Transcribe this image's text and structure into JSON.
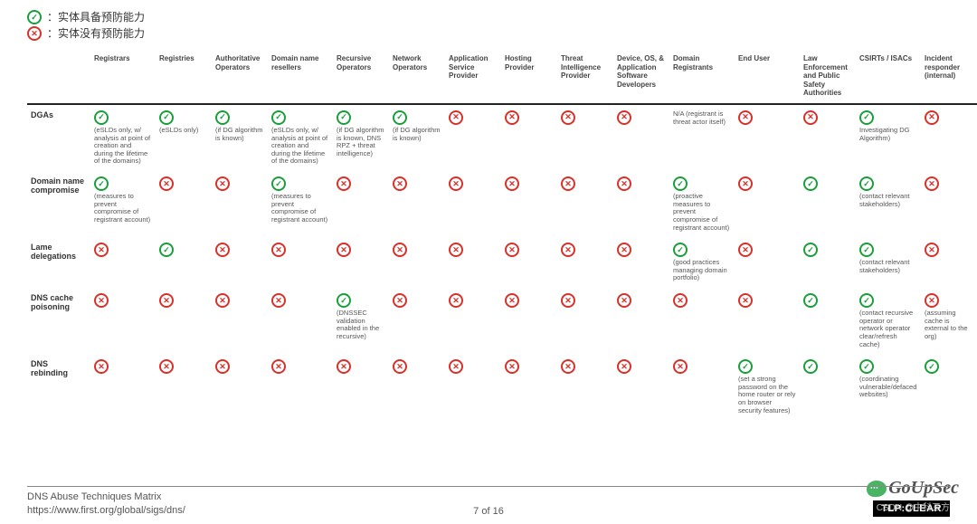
{
  "legend": {
    "yes": "：实体具备预防能力",
    "no": "：实体没有预防能力"
  },
  "columns": [
    "Registrars",
    "Registries",
    "Authoritative Operators",
    "Domain name resellers",
    "Recursive Operators",
    "Network Operators",
    "Application Service Provider",
    "Hosting Provider",
    "Threat Intelligence Provider",
    "Device, OS, & Application Software Developers",
    "Domain Registrants",
    "End User",
    "Law Enforcement and Public Safety Authorities",
    "CSIRTs / ISACs",
    "Incident responder (internal)"
  ],
  "rows": [
    {
      "label": "DGAs",
      "cells": [
        {
          "v": "y",
          "n": "(eSLDs only, w/ analysis at point of creation and during the lifetime of the domains)"
        },
        {
          "v": "y",
          "n": "(eSLDs only)"
        },
        {
          "v": "y",
          "n": "(if DG algorithm is known)"
        },
        {
          "v": "y",
          "n": "(eSLDs only, w/ analysis at point of creation and during the lifetime of the domains)"
        },
        {
          "v": "y",
          "n": "(if DG algorithm is known, DNS RPZ + threat intelligence)"
        },
        {
          "v": "y",
          "n": "(if DG algorithm is known)"
        },
        {
          "v": "n"
        },
        {
          "v": "n"
        },
        {
          "v": "n"
        },
        {
          "v": "n"
        },
        {
          "v": "",
          "n": "N/A (registrant is threat actor itself)"
        },
        {
          "v": "n"
        },
        {
          "v": "n"
        },
        {
          "v": "y",
          "n": "Investigating DG Algorithm)"
        },
        {
          "v": "n"
        }
      ]
    },
    {
      "label": "Domain name compromise",
      "cells": [
        {
          "v": "y",
          "n": "(measures to prevent compromise of registrant account)"
        },
        {
          "v": "n"
        },
        {
          "v": "n"
        },
        {
          "v": "y",
          "n": "(measures to prevent compromise of registrant account)"
        },
        {
          "v": "n"
        },
        {
          "v": "n"
        },
        {
          "v": "n"
        },
        {
          "v": "n"
        },
        {
          "v": "n"
        },
        {
          "v": "n"
        },
        {
          "v": "y",
          "n": "(proactive measures to prevent compromise of registrant account)"
        },
        {
          "v": "n"
        },
        {
          "v": "y"
        },
        {
          "v": "y",
          "n": "(contact relevant stakeholders)"
        },
        {
          "v": "n"
        }
      ]
    },
    {
      "label": "Lame delegations",
      "cells": [
        {
          "v": "n"
        },
        {
          "v": "y"
        },
        {
          "v": "n"
        },
        {
          "v": "n"
        },
        {
          "v": "n"
        },
        {
          "v": "n"
        },
        {
          "v": "n"
        },
        {
          "v": "n"
        },
        {
          "v": "n"
        },
        {
          "v": "n"
        },
        {
          "v": "y",
          "n": "(good practices managing domain portfolio)"
        },
        {
          "v": "n"
        },
        {
          "v": "y"
        },
        {
          "v": "y",
          "n": "(contact relevant stakeholders)"
        },
        {
          "v": "n"
        }
      ]
    },
    {
      "label": "DNS cache poisoning",
      "cells": [
        {
          "v": "n"
        },
        {
          "v": "n"
        },
        {
          "v": "n"
        },
        {
          "v": "n"
        },
        {
          "v": "y",
          "n": "(DNSSEC validation enabled in the recursive)"
        },
        {
          "v": "n"
        },
        {
          "v": "n"
        },
        {
          "v": "n"
        },
        {
          "v": "n"
        },
        {
          "v": "n"
        },
        {
          "v": "n"
        },
        {
          "v": "n"
        },
        {
          "v": "y"
        },
        {
          "v": "y",
          "n": "(contact recursive operator or network operator clear/refresh cache)"
        },
        {
          "v": "n",
          "n": "(assuming cache is external to the org)"
        }
      ]
    },
    {
      "label": "DNS rebinding",
      "cells": [
        {
          "v": "n"
        },
        {
          "v": "n"
        },
        {
          "v": "n"
        },
        {
          "v": "n"
        },
        {
          "v": "n"
        },
        {
          "v": "n"
        },
        {
          "v": "n"
        },
        {
          "v": "n"
        },
        {
          "v": "n"
        },
        {
          "v": "n"
        },
        {
          "v": "n"
        },
        {
          "v": "y",
          "n": "(set a strong password on the home router or rely on browser security features)"
        },
        {
          "v": "y"
        },
        {
          "v": "y",
          "n": "(coordinating vulnerable/defaced websites)"
        },
        {
          "v": "y"
        }
      ]
    }
  ],
  "footer": {
    "title": "DNS Abuse Techniques Matrix",
    "url": "https://www.first.org/global/sigs/dns/",
    "page": "7 of 16",
    "tlp": "TLP:CLEAR",
    "brand": "GoUpSec",
    "watermark": "CSDN @中科三方"
  },
  "colors": {
    "yes": "#1a9e3b",
    "no": "#d9302a"
  }
}
